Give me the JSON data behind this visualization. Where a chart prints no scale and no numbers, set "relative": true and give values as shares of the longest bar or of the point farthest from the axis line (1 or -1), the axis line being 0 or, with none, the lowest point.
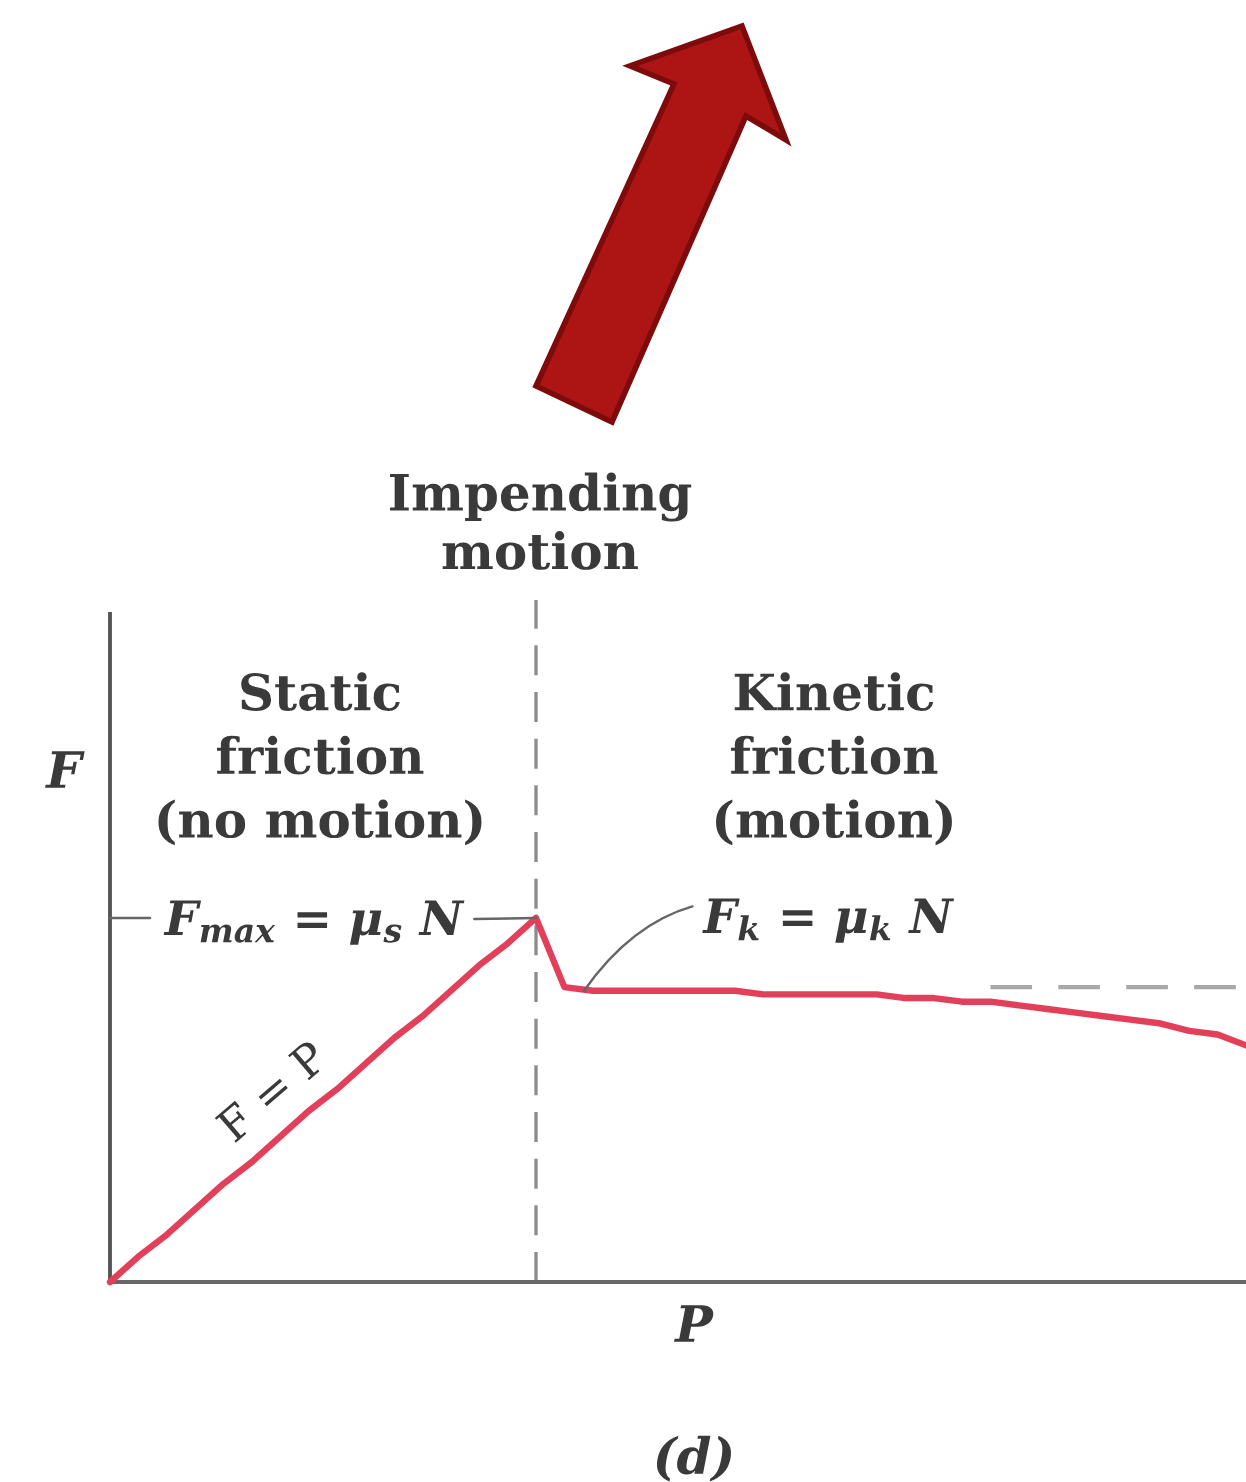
{
  "chart_data": {
    "type": "line",
    "relative": true,
    "categories": [
      null,
      null,
      null,
      null,
      null,
      null,
      null,
      null,
      null,
      null,
      null,
      null,
      null,
      null,
      null,
      null,
      null,
      null,
      null,
      null,
      null,
      null,
      null,
      null,
      null,
      null,
      null,
      null,
      null,
      null,
      null,
      null,
      null,
      null,
      null,
      null,
      null,
      null,
      null,
      null,
      null
    ],
    "series": [
      {
        "color": "#e2405a",
        "values": [
          0,
          0.07,
          0.13,
          0.2,
          0.27,
          0.33,
          0.4,
          0.47,
          0.53,
          0.6,
          0.67,
          0.73,
          0.8,
          0.87,
          0.93,
          1,
          0.81,
          0.8,
          0.8,
          0.8,
          0.8,
          0.8,
          0.8,
          0.79,
          0.79,
          0.79,
          0.79,
          0.79,
          0.78,
          0.78,
          0.77,
          0.77,
          0.76,
          0.75,
          0.74,
          0.73,
          0.72,
          0.71,
          0.69,
          0.68,
          0.65
        ]
      },
      {
        "color": "#a8a8a8",
        "line_style": "dashed",
        "values": [
          null,
          null,
          null,
          null,
          null,
          null,
          null,
          null,
          null,
          null,
          null,
          null,
          null,
          null,
          null,
          null,
          null,
          null,
          null,
          null,
          null,
          null,
          null,
          null,
          null,
          null,
          null,
          null,
          null,
          null,
          null,
          0.81,
          0.81,
          0.81,
          0.81,
          0.81,
          0.81,
          0.81,
          0.81,
          0.81,
          0.81
        ]
      }
    ],
    "xlabel": "P",
    "ylabel": "F",
    "annotations": [
      "Impending\nmotion",
      "Static\nfriction\n(no motion)",
      "Kinetic\nfriction\n(motion)",
      "F$_{max}$ = μ$_{s}$ N",
      {
        "text": "F$_{k}$ = μ$_{k}$ N",
        "y": 0.8
      },
      "F = P",
      "(d)"
    ]
  }
}
